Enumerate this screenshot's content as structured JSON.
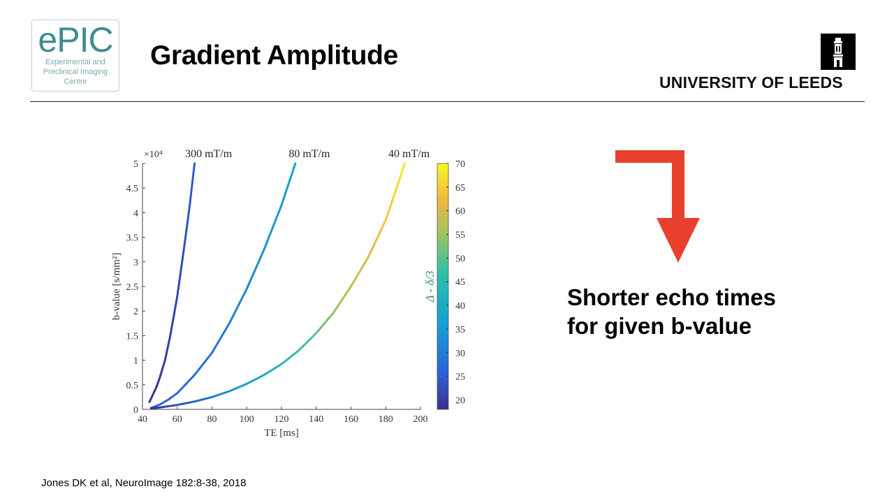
{
  "header": {
    "logo_main": "ePIC",
    "logo_sub_1": "Experimental and",
    "logo_sub_2": "Preclinical Imaging",
    "logo_sub_3": "Centre",
    "title": "Gradient Amplitude",
    "university": "UNIVERSITY OF LEEDS"
  },
  "callout": {
    "line1": "Shorter echo times",
    "line2": "for given b-value"
  },
  "citation": "Jones DK et al, NeuroImage 182:8-38, 2018",
  "colors": {
    "arrow": "#e8402c",
    "logo": "#3d8d92"
  },
  "chart_data": {
    "type": "line",
    "xlabel": "TE [ms]",
    "ylabel": "b-value [s/mm²]",
    "y_multiplier": "×10⁴",
    "xlim": [
      40,
      200
    ],
    "ylim": [
      0,
      5
    ],
    "xticks": [
      40,
      60,
      80,
      100,
      120,
      140,
      160,
      180,
      200
    ],
    "yticks": [
      0,
      0.5,
      1,
      1.5,
      2,
      2.5,
      3,
      3.5,
      4,
      4.5,
      5
    ],
    "colorbar": {
      "label": "Δ - δ/3",
      "range": [
        18,
        70
      ],
      "ticks": [
        20,
        25,
        30,
        35,
        40,
        45,
        50,
        55,
        60,
        65,
        70
      ]
    },
    "series": [
      {
        "name": "300 mT/m",
        "x": [
          44,
          46,
          48,
          50,
          53,
          56,
          60,
          64,
          67,
          70
        ],
        "y": [
          0.15,
          0.3,
          0.45,
          0.65,
          1.0,
          1.5,
          2.3,
          3.3,
          4.1,
          5.0
        ]
      },
      {
        "name": "80 mT/m",
        "x": [
          45,
          50,
          55,
          60,
          70,
          80,
          90,
          100,
          110,
          120,
          128
        ],
        "y": [
          0.03,
          0.1,
          0.2,
          0.33,
          0.7,
          1.15,
          1.75,
          2.45,
          3.25,
          4.15,
          5.0
        ]
      },
      {
        "name": "40 mT/m",
        "x": [
          45,
          50,
          60,
          70,
          80,
          90,
          100,
          110,
          120,
          130,
          140,
          150,
          160,
          170,
          180,
          191
        ],
        "y": [
          0.02,
          0.04,
          0.09,
          0.16,
          0.25,
          0.37,
          0.52,
          0.7,
          0.92,
          1.2,
          1.55,
          1.97,
          2.5,
          3.1,
          3.85,
          5.0
        ]
      }
    ]
  }
}
